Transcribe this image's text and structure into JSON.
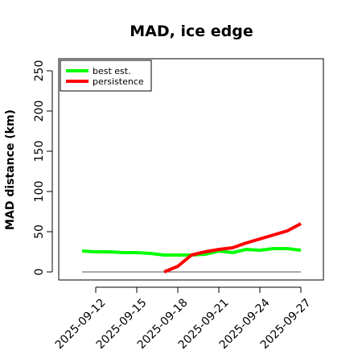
{
  "chart_data": {
    "type": "line",
    "title": "MAD, ice edge",
    "xlabel": "",
    "ylabel": "MAD distance (km)",
    "ylim": [
      0,
      250
    ],
    "yticks": [
      0,
      50,
      100,
      150,
      200,
      250
    ],
    "x_dates": [
      "2025-09-11",
      "2025-09-12",
      "2025-09-13",
      "2025-09-14",
      "2025-09-15",
      "2025-09-16",
      "2025-09-17",
      "2025-09-18",
      "2025-09-19",
      "2025-09-20",
      "2025-09-21",
      "2025-09-22",
      "2025-09-23",
      "2025-09-24",
      "2025-09-25",
      "2025-09-26",
      "2025-09-27"
    ],
    "xtick_labels": [
      "2025-09-12",
      "2025-09-15",
      "2025-09-18",
      "2025-09-21",
      "2025-09-24",
      "2025-09-27"
    ],
    "grid": false,
    "legend_position": "top-left",
    "reference_line": 0,
    "series": [
      {
        "name": "best est.",
        "color": "#00ff00",
        "x": [
          "2025-09-11",
          "2025-09-12",
          "2025-09-13",
          "2025-09-14",
          "2025-09-15",
          "2025-09-16",
          "2025-09-17",
          "2025-09-18",
          "2025-09-19",
          "2025-09-20",
          "2025-09-21",
          "2025-09-22",
          "2025-09-23",
          "2025-09-24",
          "2025-09-25",
          "2025-09-26",
          "2025-09-27"
        ],
        "values": [
          26,
          25,
          25,
          24,
          24,
          23,
          21,
          21,
          21,
          22,
          26,
          24,
          28,
          27,
          29,
          29,
          27
        ]
      },
      {
        "name": "persistence",
        "color": "#ff0000",
        "x": [
          "2025-09-17",
          "2025-09-18",
          "2025-09-19",
          "2025-09-20",
          "2025-09-21",
          "2025-09-22",
          "2025-09-23",
          "2025-09-24",
          "2025-09-25",
          "2025-09-26",
          "2025-09-27"
        ],
        "values": [
          0,
          7,
          21,
          25,
          28,
          30,
          36,
          41,
          46,
          51,
          60
        ]
      }
    ]
  }
}
